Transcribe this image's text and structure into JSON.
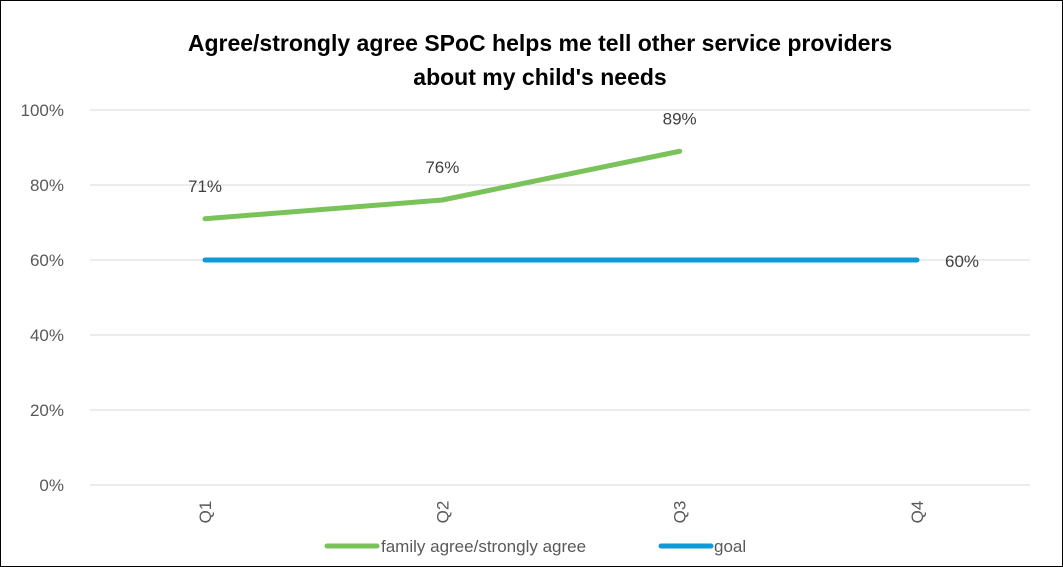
{
  "chart_data": {
    "type": "line",
    "title": "Agree/strongly agree SPoC helps me tell other service providers about my child's needs",
    "categories": [
      "Q1",
      "Q2",
      "Q3",
      "Q4"
    ],
    "y_ticks": [
      "0%",
      "20%",
      "40%",
      "60%",
      "80%",
      "100%"
    ],
    "ylim": [
      0,
      100
    ],
    "y_unit": "%",
    "grid": true,
    "legend_position": "bottom",
    "series": [
      {
        "name": "family agree/strongly agree",
        "color": "#7ac35b",
        "values": [
          71,
          76,
          89,
          null
        ],
        "labels": [
          "71%",
          "76%",
          "89%",
          ""
        ]
      },
      {
        "name": "goal",
        "color": "#0d9ad6",
        "values": [
          60,
          60,
          60,
          60
        ],
        "labels": [
          "",
          "",
          "",
          "60%"
        ]
      }
    ]
  }
}
